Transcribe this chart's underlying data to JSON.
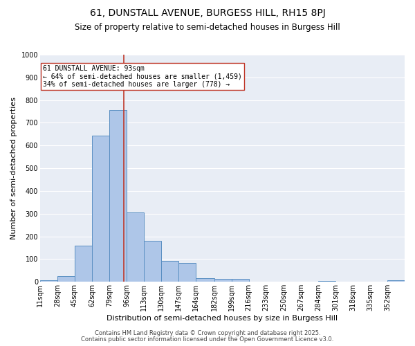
{
  "title1": "61, DUNSTALL AVENUE, BURGESS HILL, RH15 8PJ",
  "title2": "Size of property relative to semi-detached houses in Burgess Hill",
  "xlabel": "Distribution of semi-detached houses by size in Burgess Hill",
  "ylabel": "Number of semi-detached properties",
  "bin_labels": [
    "11sqm",
    "28sqm",
    "45sqm",
    "62sqm",
    "79sqm",
    "96sqm",
    "113sqm",
    "130sqm",
    "147sqm",
    "164sqm",
    "182sqm",
    "199sqm",
    "216sqm",
    "233sqm",
    "250sqm",
    "267sqm",
    "284sqm",
    "301sqm",
    "318sqm",
    "335sqm",
    "352sqm"
  ],
  "bin_edges": [
    11,
    28,
    45,
    62,
    79,
    96,
    113,
    130,
    147,
    164,
    182,
    199,
    216,
    233,
    250,
    267,
    284,
    301,
    318,
    335,
    352
  ],
  "bar_heights": [
    8,
    25,
    160,
    645,
    755,
    305,
    180,
    93,
    83,
    16,
    12,
    12,
    0,
    0,
    0,
    0,
    5,
    0,
    0,
    0,
    7
  ],
  "bar_color": "#aec6e8",
  "bar_edge_color": "#5a8fc2",
  "property_size": 93,
  "vline_color": "#c0392b",
  "annotation_line1": "61 DUNSTALL AVENUE: 93sqm",
  "annotation_line2": "← 64% of semi-detached houses are smaller (1,459)",
  "annotation_line3": "34% of semi-detached houses are larger (778) →",
  "annotation_box_color": "#ffffff",
  "annotation_box_edge_color": "#c0392b",
  "ylim": [
    0,
    1000
  ],
  "yticks": [
    0,
    100,
    200,
    300,
    400,
    500,
    600,
    700,
    800,
    900,
    1000
  ],
  "background_color": "#e8edf5",
  "grid_color": "#ffffff",
  "footer_line1": "Contains HM Land Registry data © Crown copyright and database right 2025.",
  "footer_line2": "Contains public sector information licensed under the Open Government Licence v3.0.",
  "title1_fontsize": 10,
  "title2_fontsize": 8.5,
  "xlabel_fontsize": 8,
  "ylabel_fontsize": 8,
  "tick_fontsize": 7,
  "footer_fontsize": 6,
  "annot_fontsize": 7
}
